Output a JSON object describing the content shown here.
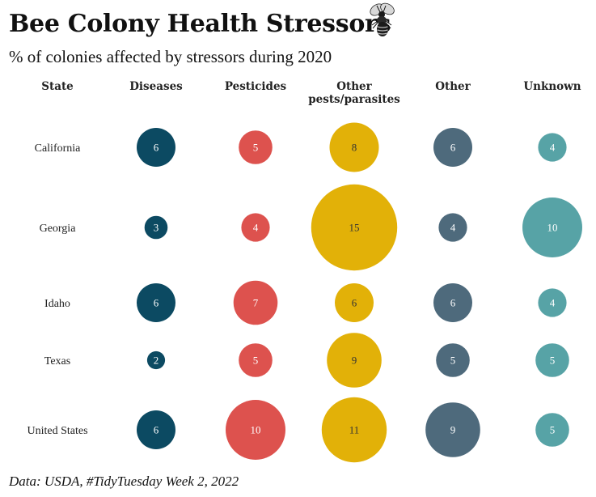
{
  "title": "Bee Colony Health Stressors",
  "subtitle": "% of colonies affected by stressors during 2020",
  "caption": "Data: USDA, #TidyTuesday Week 2, 2022",
  "chart_data": {
    "type": "bubble-table",
    "title": "Bee Colony Health Stressors",
    "subtitle": "% of colonies affected by stressors during 2020",
    "row_header": "State",
    "columns": [
      {
        "label": [
          "Diseases"
        ],
        "color": "#0c4a62"
      },
      {
        "label": [
          "Pesticides"
        ],
        "color": "#dd524e"
      },
      {
        "label": [
          "Other",
          "pests/parasites"
        ],
        "color": "#e2b108"
      },
      {
        "label": [
          "Other"
        ],
        "color": "#4e6a7c"
      },
      {
        "label": [
          "Unknown"
        ],
        "color": "#57a3a6"
      }
    ],
    "rows": [
      {
        "state": "California",
        "values": [
          6,
          5,
          8,
          6,
          4
        ]
      },
      {
        "state": "Georgia",
        "values": [
          3,
          4,
          15,
          4,
          10
        ]
      },
      {
        "state": "Idaho",
        "values": [
          6,
          7,
          6,
          6,
          4
        ]
      },
      {
        "state": "Texas",
        "values": [
          2,
          5,
          9,
          5,
          5
        ]
      },
      {
        "state": "United States",
        "values": [
          6,
          10,
          11,
          9,
          5
        ]
      }
    ]
  }
}
